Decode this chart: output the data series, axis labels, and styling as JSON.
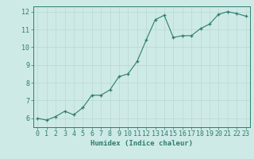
{
  "x": [
    0,
    1,
    2,
    3,
    4,
    5,
    6,
    7,
    8,
    9,
    10,
    11,
    12,
    13,
    14,
    15,
    16,
    17,
    18,
    19,
    20,
    21,
    22,
    23
  ],
  "y": [
    6.0,
    5.9,
    6.1,
    6.4,
    6.2,
    6.6,
    7.3,
    7.3,
    7.6,
    8.35,
    8.5,
    9.2,
    10.4,
    11.55,
    11.8,
    10.55,
    10.65,
    10.65,
    11.05,
    11.3,
    11.85,
    12.0,
    11.9,
    11.75
  ],
  "xlabel": "Humidex (Indice chaleur)",
  "ylim": [
    5.5,
    12.3
  ],
  "xlim": [
    -0.5,
    23.5
  ],
  "yticks": [
    6,
    7,
    8,
    9,
    10,
    11,
    12
  ],
  "xticks": [
    0,
    1,
    2,
    3,
    4,
    5,
    6,
    7,
    8,
    9,
    10,
    11,
    12,
    13,
    14,
    15,
    16,
    17,
    18,
    19,
    20,
    21,
    22,
    23
  ],
  "line_color": "#2d7d6e",
  "marker_color": "#2d7d6e",
  "bg_color": "#ceeae6",
  "grid_color": "#b8d8d4",
  "axis_color": "#2d7d6e",
  "label_color": "#2d7d6e",
  "tick_color": "#2d7d6e",
  "font_family": "monospace",
  "xlabel_fontsize": 6.5,
  "tick_fontsize": 6.0
}
